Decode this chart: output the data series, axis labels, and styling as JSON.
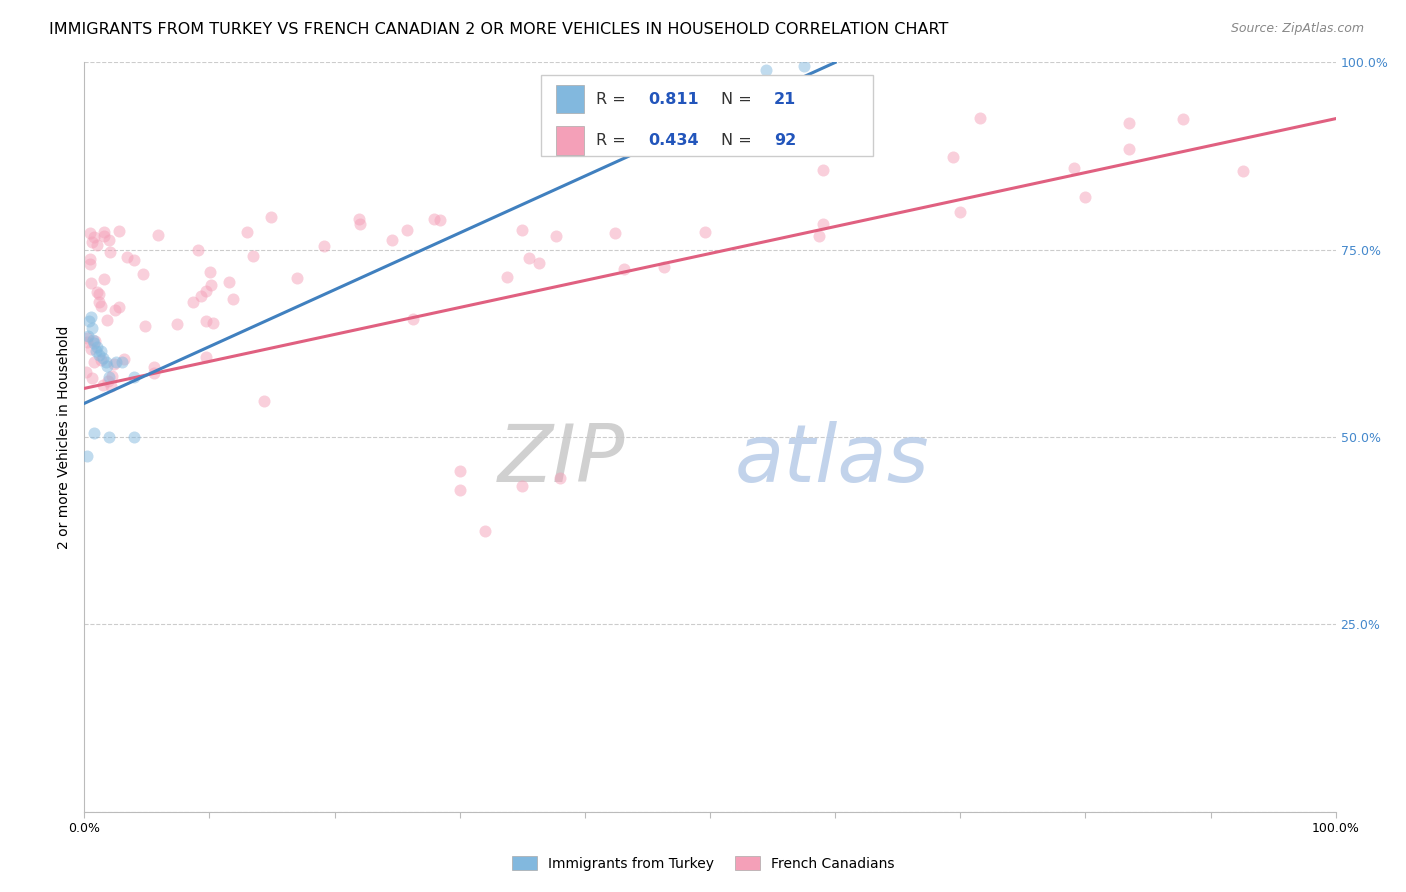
{
  "title": "IMMIGRANTS FROM TURKEY VS FRENCH CANADIAN 2 OR MORE VEHICLES IN HOUSEHOLD CORRELATION CHART",
  "source": "Source: ZipAtlas.com",
  "ylabel": "2 or more Vehicles in Household",
  "xlim": [
    0,
    1.0
  ],
  "ylim": [
    0,
    1.0
  ],
  "xtick_positions": [
    0.0,
    0.1,
    0.2,
    0.3,
    0.4,
    0.5,
    0.6,
    0.7,
    0.8,
    0.9,
    1.0
  ],
  "xtick_labels": [
    "0.0%",
    "",
    "",
    "",
    "",
    "",
    "",
    "",
    "",
    "",
    "100.0%"
  ],
  "ytick_positions": [
    0.0,
    0.25,
    0.5,
    0.75,
    1.0
  ],
  "right_ytick_labels": [
    "25.0%",
    "50.0%",
    "75.0%",
    "100.0%"
  ],
  "right_ytick_positions": [
    0.25,
    0.5,
    0.75,
    1.0
  ],
  "blue_color": "#82b8de",
  "pink_color": "#f4a0b8",
  "blue_line_color": "#4080bf",
  "pink_line_color": "#e06080",
  "right_tick_color": "#4488cc",
  "grid_color": "#cccccc",
  "scatter_size": 75,
  "scatter_alpha": 0.5,
  "blue_line_x0": 0.0,
  "blue_line_y0": 0.545,
  "blue_line_x1": 0.6,
  "blue_line_y1": 1.0,
  "pink_line_x0": 0.0,
  "pink_line_y0": 0.565,
  "pink_line_x1": 1.0,
  "pink_line_y1": 0.925,
  "legend_R1": "0.811",
  "legend_N1": "21",
  "legend_R2": "0.434",
  "legend_N2": "92",
  "watermark_zip": "ZIP",
  "watermark_atlas": "atlas",
  "watermark_color_zip": "#c8c8c8",
  "watermark_color_atlas": "#b8cce8",
  "title_fontsize": 11.5,
  "source_fontsize": 9,
  "ylabel_fontsize": 10,
  "tick_fontsize": 9,
  "legend_fontsize": 11.5,
  "bottom_legend_label1": "Immigrants from Turkey",
  "bottom_legend_label2": "French Canadians"
}
